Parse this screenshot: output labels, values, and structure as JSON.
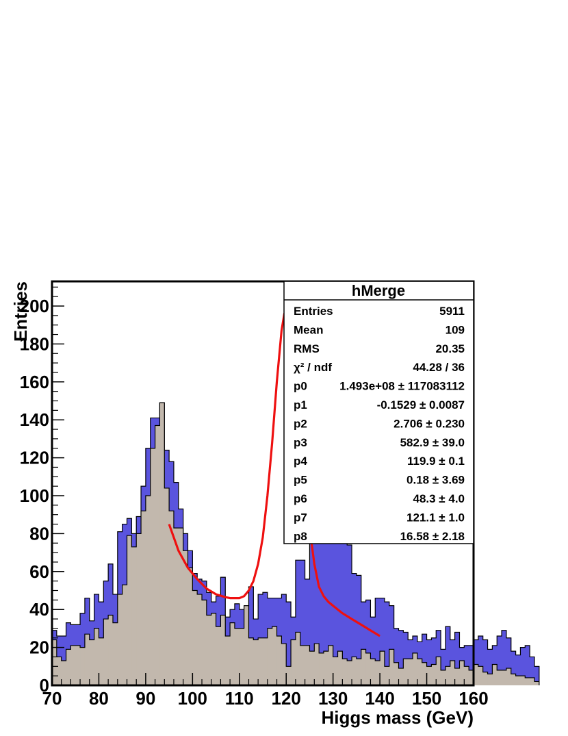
{
  "chart_data": {
    "type": "histogram",
    "title": "",
    "xlabel": "Higgs mass (GeV)",
    "ylabel": "Entries",
    "xlim": [
      70,
      160
    ],
    "ylim": [
      0,
      213
    ],
    "x_ticks": [
      "70",
      "80",
      "90",
      "100",
      "110",
      "120",
      "130",
      "140",
      "150",
      "160"
    ],
    "y_ticks": [
      "0",
      "20",
      "40",
      "60",
      "80",
      "100",
      "120",
      "140",
      "160",
      "180",
      "200"
    ],
    "bin_width": 1,
    "bin_edges_start": 70,
    "series": [
      {
        "fill": "#5a54de",
        "values": [
          29,
          26,
          26,
          33,
          32,
          32,
          38,
          46,
          34,
          48,
          44,
          55,
          64,
          48,
          81,
          85,
          88,
          80,
          89,
          105,
          125,
          141,
          141,
          149,
          124,
          118,
          107,
          93,
          80,
          71,
          59,
          56,
          55,
          49,
          44,
          47,
          57,
          36,
          40,
          43,
          40,
          42,
          52,
          35,
          48,
          49,
          46,
          46,
          46,
          48,
          44,
          36,
          66,
          66,
          56,
          90,
          114,
          160,
          203,
          203,
          183,
          145,
          117,
          74,
          59,
          58,
          44,
          45,
          36,
          46,
          46,
          44,
          42,
          30,
          29,
          28,
          24,
          26,
          23,
          27,
          24,
          25,
          29,
          19,
          31,
          24,
          28,
          20,
          21,
          21,
          24,
          26,
          24,
          19,
          21,
          26,
          29,
          25,
          18,
          16,
          20,
          21,
          15,
          10
        ]
      },
      {
        "fill": "#c2b8ad",
        "values": [
          24,
          15,
          13,
          19,
          21,
          21,
          20,
          27,
          24,
          30,
          25,
          35,
          37,
          33,
          48,
          53,
          79,
          73,
          80,
          92,
          100,
          125,
          137,
          149,
          104,
          92,
          83,
          83,
          71,
          62,
          50,
          48,
          45,
          37,
          38,
          31,
          37,
          26,
          33,
          30,
          30,
          42,
          25,
          24,
          25,
          25,
          30,
          31,
          26,
          22,
          10,
          24,
          28,
          21,
          21,
          18,
          22,
          17,
          18,
          21,
          15,
          18,
          14,
          13,
          15,
          14,
          19,
          17,
          14,
          13,
          18,
          10,
          19,
          12,
          9,
          14,
          14,
          17,
          14,
          12,
          10,
          11,
          15,
          8,
          10,
          13,
          9,
          13,
          10,
          8,
          11,
          10,
          7,
          6,
          11,
          8,
          8,
          9,
          6,
          5,
          5,
          4,
          4,
          2
        ]
      }
    ],
    "fit_curve": {
      "color": "#ee1010",
      "x_range": [
        95,
        140
      ],
      "points": [
        [
          95,
          85
        ],
        [
          97,
          71
        ],
        [
          99,
          62
        ],
        [
          101,
          56
        ],
        [
          103,
          51
        ],
        [
          105,
          48
        ],
        [
          107,
          46.5
        ],
        [
          108,
          46
        ],
        [
          110,
          46
        ],
        [
          111,
          47
        ],
        [
          112,
          50
        ],
        [
          113,
          55
        ],
        [
          114,
          64
        ],
        [
          115,
          78
        ],
        [
          116,
          100
        ],
        [
          117,
          128
        ],
        [
          118,
          160
        ],
        [
          119,
          187
        ],
        [
          119.6,
          196
        ],
        [
          120,
          197
        ],
        [
          120.6,
          193
        ],
        [
          121,
          186
        ],
        [
          122,
          163
        ],
        [
          123,
          134
        ],
        [
          124,
          107
        ],
        [
          125,
          83
        ],
        [
          126,
          64
        ],
        [
          127,
          52
        ],
        [
          128,
          47
        ],
        [
          129,
          44
        ],
        [
          130,
          42
        ],
        [
          131,
          40
        ],
        [
          132,
          38
        ],
        [
          134,
          35
        ],
        [
          136,
          32
        ],
        [
          138,
          29
        ],
        [
          140,
          26
        ]
      ]
    }
  },
  "stats_box": {
    "title": "hMerge",
    "rows": [
      {
        "label": "Entries",
        "value": "5911"
      },
      {
        "label": "Mean",
        "value": "109"
      },
      {
        "label": "RMS",
        "value": "20.35"
      },
      {
        "label": "χ² / ndf",
        "value": "44.28 / 36"
      },
      {
        "label": "p0",
        "value": "1.493e+08 ± 117083112"
      },
      {
        "label": "p1",
        "value": "-0.1529 ± 0.0087"
      },
      {
        "label": "p2",
        "value": "2.706 ± 0.230"
      },
      {
        "label": "p3",
        "value": "582.9 ± 39.0"
      },
      {
        "label": "p4",
        "value": "119.9 ± 0.1"
      },
      {
        "label": "p5",
        "value": "0.18 ± 3.69"
      },
      {
        "label": "p6",
        "value": "48.3 ± 4.0"
      },
      {
        "label": "p7",
        "value": "121.1 ± 1.0"
      },
      {
        "label": "p8",
        "value": "16.58 ± 2.18"
      }
    ]
  }
}
